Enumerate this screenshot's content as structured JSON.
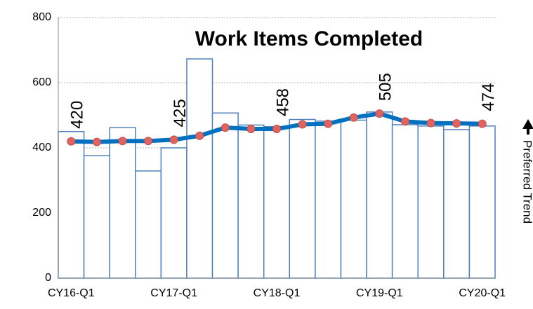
{
  "chart_data": {
    "type": "combo",
    "title": "Work Items Completed",
    "annotation": "Preferred Trend",
    "categories": [
      "CY16-Q1",
      null,
      null,
      null,
      "CY17-Q1",
      null,
      null,
      null,
      "CY18-Q1",
      null,
      null,
      null,
      "CY19-Q1",
      null,
      null,
      null,
      "CY20-Q1"
    ],
    "series": [
      {
        "type": "bar",
        "color": "#4f81bd",
        "values": [
          450,
          376,
          462,
          329,
          400,
          673,
          507,
          470,
          465,
          487,
          482,
          485,
          510,
          471,
          467,
          456,
          467
        ]
      },
      {
        "type": "line",
        "color": "#0070c0",
        "marker_color": "#e0635f",
        "values": [
          420,
          418,
          421,
          421,
          425,
          437,
          462,
          458,
          458,
          472,
          474,
          493,
          505,
          481,
          476,
          475,
          474
        ],
        "value_labels": [
          "420",
          null,
          null,
          null,
          "425",
          null,
          null,
          null,
          "458",
          null,
          null,
          null,
          "505",
          null,
          null,
          null,
          "474"
        ]
      }
    ],
    "ylim": [
      0,
      800
    ],
    "yticks": [
      0,
      200,
      400,
      600,
      800
    ],
    "grid": true
  }
}
